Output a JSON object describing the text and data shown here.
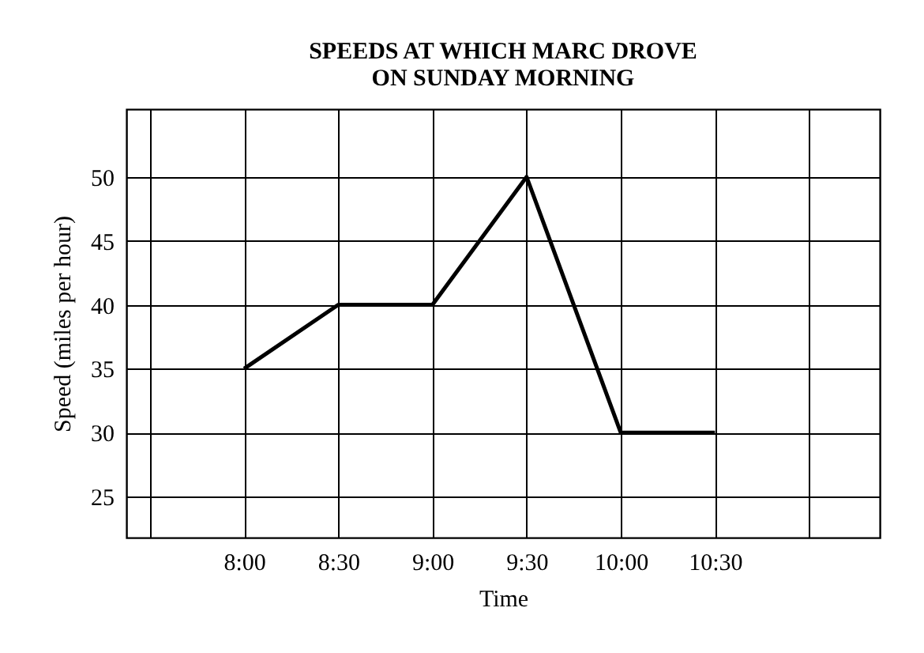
{
  "chart_data": {
    "type": "line",
    "title": "SPEEDS AT WHICH MARC DROVE\nON SUNDAY MORNING",
    "xlabel": "Time",
    "ylabel": "Speed (miles per hour)",
    "x": [
      8,
      8.5,
      9,
      9.5,
      10,
      10.5
    ],
    "series": [
      {
        "color": "#000000",
        "values": [
          35,
          40,
          40,
          50,
          30,
          30
        ]
      }
    ],
    "xlim": [
      7.375,
      11.375
    ],
    "xticks": [
      {
        "value": 7.5,
        "label": null
      },
      {
        "value": 8,
        "label": "8:00"
      },
      {
        "value": 8.5,
        "label": "8:30"
      },
      {
        "value": 9,
        "label": "9:00"
      },
      {
        "value": 9.5,
        "label": "9:30"
      },
      {
        "value": 10,
        "label": "10:00"
      },
      {
        "value": 10.5,
        "label": "10:30"
      },
      {
        "value": 11,
        "label": null
      }
    ],
    "ylim": [
      21.8,
      55.3
    ],
    "yticks": [
      25,
      30,
      35,
      40,
      45,
      50
    ],
    "grid": true,
    "marker": "none",
    "line_style": "solid"
  }
}
